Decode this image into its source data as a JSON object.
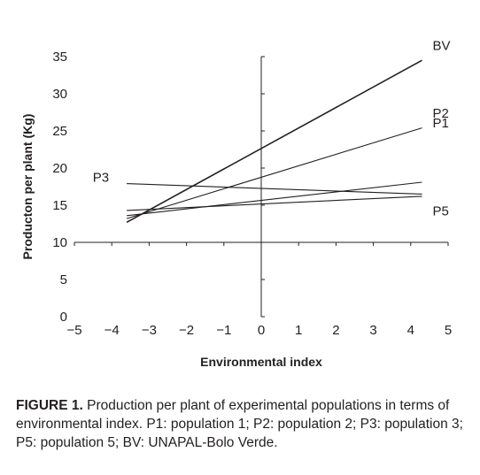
{
  "chart_data": {
    "type": "line",
    "xlabel": "Environmental index",
    "ylabel": "Producton per plant (Kg)",
    "xlim": [
      -5,
      5
    ],
    "ylim": [
      0,
      35
    ],
    "xticks": [
      -5,
      -4,
      -3,
      -2,
      -1,
      0,
      1,
      2,
      3,
      4,
      5
    ],
    "yticks": [
      0,
      5,
      10,
      15,
      20,
      25,
      30,
      35
    ],
    "axes_cross_at_origin": true,
    "series": [
      {
        "name": "BV",
        "x": [
          -3.6,
          4.3
        ],
        "y": [
          12.7,
          34.5
        ],
        "color": "#231f20"
      },
      {
        "name": "P2",
        "x": [
          -3.6,
          4.3
        ],
        "y": [
          13.2,
          25.4
        ],
        "color": "#231f20"
      },
      {
        "name": "P1",
        "x": [
          -3.6,
          4.3
        ],
        "y": [
          13.6,
          18.1
        ],
        "color": "#231f20"
      },
      {
        "name": "P3",
        "x": [
          -3.6,
          4.3
        ],
        "y": [
          17.9,
          16.5
        ],
        "color": "#231f20"
      },
      {
        "name": "P5",
        "x": [
          -3.6,
          4.3
        ],
        "y": [
          14.3,
          16.2
        ],
        "color": "#231f20"
      }
    ]
  },
  "caption": {
    "label": "FIGURE 1.",
    "text": " Production per plant of experimental populations in terms of environmental index. P1: population 1; P2: population 2; P3: population 3; P5: population 5; BV: UNAPAL-Bolo Verde."
  }
}
